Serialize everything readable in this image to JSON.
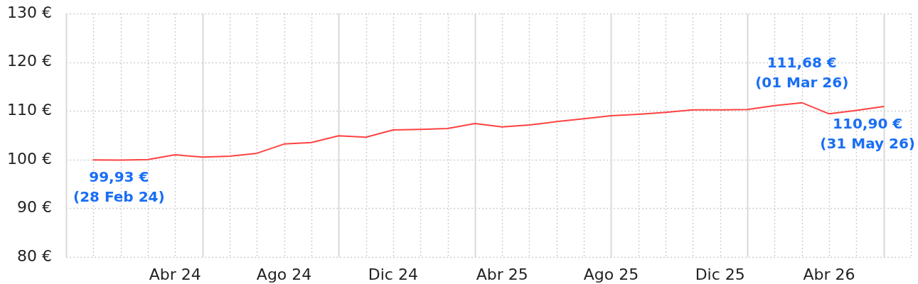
{
  "chart_data": {
    "type": "line",
    "categories": [
      null,
      null,
      null,
      "Abr 24",
      null,
      null,
      null,
      "Ago 24",
      null,
      null,
      null,
      "Dic 24",
      null,
      null,
      null,
      "Abr 25",
      null,
      null,
      null,
      "Ago 25",
      null,
      null,
      null,
      "Dic 25",
      null,
      null,
      null,
      "Abr 26",
      null,
      null
    ],
    "series": [
      {
        "color": "#ff4242",
        "values": [
          99.93,
          99.9,
          100.0,
          101.0,
          100.5,
          100.7,
          101.3,
          103.2,
          103.5,
          104.9,
          104.6,
          106.1,
          106.2,
          106.4,
          107.4,
          106.7,
          107.1,
          107.8,
          108.4,
          109.0,
          109.3,
          109.7,
          110.2,
          110.2,
          110.3,
          111.1,
          111.68,
          109.4,
          110.1,
          110.9
        ],
        "value_labels": [
          "99,93 €\n(28 Feb 24)",
          null,
          null,
          null,
          null,
          null,
          null,
          null,
          null,
          null,
          null,
          null,
          null,
          null,
          null,
          null,
          null,
          null,
          null,
          null,
          null,
          null,
          null,
          null,
          null,
          null,
          "111,68 €\n(01 Mar 26)",
          null,
          null,
          "110,90 €\n(31 May 26)"
        ]
      }
    ],
    "ylim": [
      80,
      130
    ],
    "yticks": [
      {
        "value": 80,
        "label": "80 €"
      },
      {
        "value": 90,
        "label": "90 €"
      },
      {
        "value": 100,
        "label": "100 €"
      },
      {
        "value": 110,
        "label": "110 €"
      },
      {
        "value": 120,
        "label": "120 €"
      },
      {
        "value": 130,
        "label": "130 €"
      }
    ],
    "grid": true,
    "marker": "none"
  }
}
